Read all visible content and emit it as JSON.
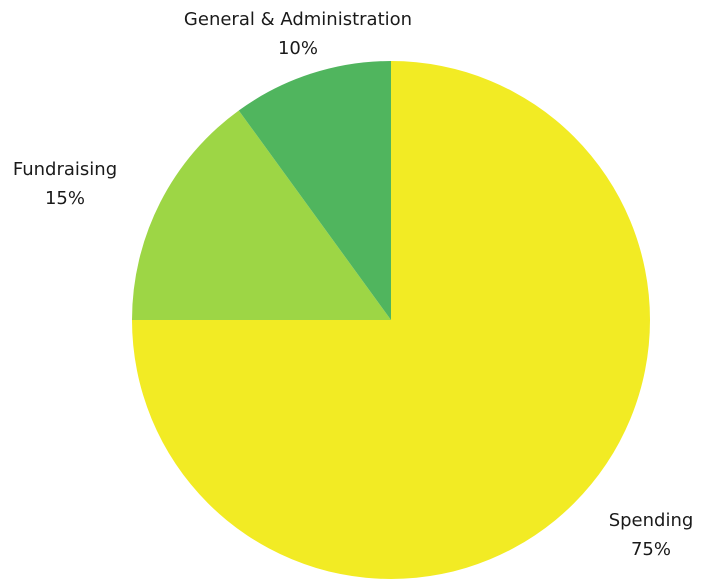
{
  "chart_data": {
    "type": "pie",
    "title": "",
    "start_angle_deg": 0,
    "direction": "clockwise",
    "slices": [
      {
        "name": "Spending",
        "percent_label": "75%",
        "value": 75,
        "color": "#f2eb24"
      },
      {
        "name": "Fundraising",
        "percent_label": "15%",
        "value": 15,
        "color": "#9dd645"
      },
      {
        "name": "General & Administration",
        "percent_label": "10%",
        "value": 10,
        "color": "#50b55e"
      }
    ],
    "legend": "none",
    "labels_position": "outside"
  }
}
